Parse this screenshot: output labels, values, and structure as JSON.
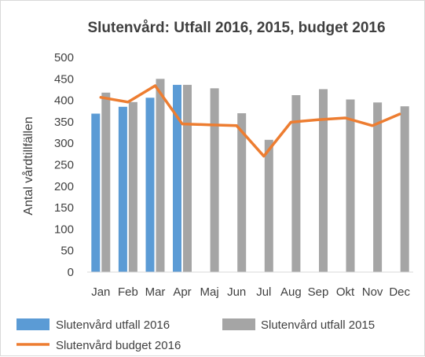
{
  "chart_data": {
    "type": "bar",
    "title": "Slutenvård: Utfall 2016, 2015, budget 2016",
    "xlabel": "",
    "ylabel": "Antal vårdtillfällen",
    "ylim": [
      0,
      500
    ],
    "yticks": [
      0,
      50,
      100,
      150,
      200,
      250,
      300,
      350,
      400,
      450,
      500
    ],
    "grid": false,
    "legend_position": "bottom",
    "categories": [
      "Jan",
      "Feb",
      "Mar",
      "Apr",
      "Maj",
      "Jun",
      "Jul",
      "Aug",
      "Sep",
      "Okt",
      "Nov",
      "Dec"
    ],
    "series": [
      {
        "name": "Slutenvård utfall 2016",
        "type": "bar",
        "color": "#5b9bd5",
        "values": [
          369,
          385,
          406,
          436,
          null,
          null,
          null,
          null,
          null,
          null,
          null,
          null
        ]
      },
      {
        "name": "Slutenvård utfall 2015",
        "type": "bar",
        "color": "#a5a5a5",
        "values": [
          418,
          396,
          450,
          436,
          428,
          370,
          308,
          412,
          426,
          402,
          395,
          386
        ]
      },
      {
        "name": "Slutenvård budget 2016",
        "type": "line",
        "color": "#ed7d31",
        "values": [
          407,
          396,
          434,
          345,
          343,
          341,
          270,
          349,
          355,
          359,
          341,
          368
        ]
      }
    ]
  }
}
